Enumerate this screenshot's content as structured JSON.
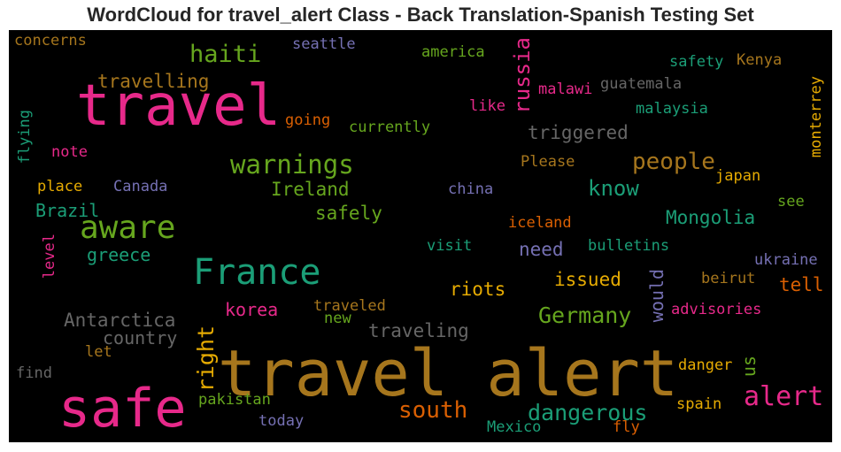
{
  "chart_data": {
    "type": "wordcloud",
    "title": "WordCloud for travel_alert Class - Back Translation-Spanish Testing Set",
    "background": "#000000",
    "palette": {
      "pink": "#e7298a",
      "olive": "#66a61e",
      "brown": "#a6761d",
      "teal": "#1b9e77",
      "purple": "#7570b3",
      "orange": "#d95f02",
      "gold": "#e6ab02",
      "gray": "#666666"
    },
    "words": [
      {
        "text": "travel alert",
        "color": "brown"
      },
      {
        "text": "travel",
        "color": "pink"
      },
      {
        "text": "safe",
        "color": "pink"
      },
      {
        "text": "France",
        "color": "teal"
      },
      {
        "text": "aware",
        "color": "olive"
      },
      {
        "text": "warnings",
        "color": "olive"
      },
      {
        "text": "alert",
        "color": "pink"
      },
      {
        "text": "haiti",
        "color": "olive"
      },
      {
        "text": "russia",
        "color": "pink"
      },
      {
        "text": "people",
        "color": "brown"
      },
      {
        "text": "south",
        "color": "orange"
      },
      {
        "text": "dangerous",
        "color": "teal"
      },
      {
        "text": "right",
        "color": "gold"
      },
      {
        "text": "Germany",
        "color": "olive"
      },
      {
        "text": "know",
        "color": "teal"
      },
      {
        "text": "travelling",
        "color": "brown"
      },
      {
        "text": "Antarctica",
        "color": "gray"
      },
      {
        "text": "Ireland",
        "color": "olive"
      },
      {
        "text": "triggered",
        "color": "gray"
      },
      {
        "text": "Mongolia",
        "color": "teal"
      },
      {
        "text": "safely",
        "color": "olive"
      },
      {
        "text": "riots",
        "color": "gold"
      },
      {
        "text": "issued",
        "color": "gold"
      },
      {
        "text": "traveling",
        "color": "gray"
      },
      {
        "text": "Brazil",
        "color": "teal"
      },
      {
        "text": "korea",
        "color": "pink"
      },
      {
        "text": "country",
        "color": "gray"
      },
      {
        "text": "greece",
        "color": "teal"
      },
      {
        "text": "need",
        "color": "purple"
      },
      {
        "text": "would",
        "color": "purple"
      },
      {
        "text": "tell",
        "color": "orange"
      },
      {
        "text": "us",
        "color": "olive"
      },
      {
        "text": "monterrey",
        "color": "gold"
      },
      {
        "text": "currently",
        "color": "olive"
      },
      {
        "text": "going",
        "color": "orange"
      },
      {
        "text": "seattle",
        "color": "purple"
      },
      {
        "text": "america",
        "color": "olive"
      },
      {
        "text": "safety",
        "color": "teal"
      },
      {
        "text": "Kenya",
        "color": "brown"
      },
      {
        "text": "guatemala",
        "color": "gray"
      },
      {
        "text": "malawi",
        "color": "pink"
      },
      {
        "text": "like",
        "color": "pink"
      },
      {
        "text": "malaysia",
        "color": "teal"
      },
      {
        "text": "concerns",
        "color": "brown"
      },
      {
        "text": "flying",
        "color": "teal"
      },
      {
        "text": "note",
        "color": "pink"
      },
      {
        "text": "place",
        "color": "gold"
      },
      {
        "text": "Canada",
        "color": "purple"
      },
      {
        "text": "Please",
        "color": "brown"
      },
      {
        "text": "china",
        "color": "purple"
      },
      {
        "text": "japan",
        "color": "gold"
      },
      {
        "text": "see",
        "color": "olive"
      },
      {
        "text": "iceland",
        "color": "orange"
      },
      {
        "text": "visit",
        "color": "teal"
      },
      {
        "text": "bulletins",
        "color": "teal"
      },
      {
        "text": "ukraine",
        "color": "purple"
      },
      {
        "text": "beirut",
        "color": "brown"
      },
      {
        "text": "advisories",
        "color": "pink"
      },
      {
        "text": "level",
        "color": "pink"
      },
      {
        "text": "traveled",
        "color": "brown"
      },
      {
        "text": "new",
        "color": "olive"
      },
      {
        "text": "let",
        "color": "brown"
      },
      {
        "text": "find",
        "color": "gray"
      },
      {
        "text": "danger",
        "color": "gold"
      },
      {
        "text": "pakistan",
        "color": "olive"
      },
      {
        "text": "today",
        "color": "purple"
      },
      {
        "text": "spain",
        "color": "gold"
      },
      {
        "text": "Mexico",
        "color": "teal"
      },
      {
        "text": "fly",
        "color": "orange"
      }
    ]
  }
}
